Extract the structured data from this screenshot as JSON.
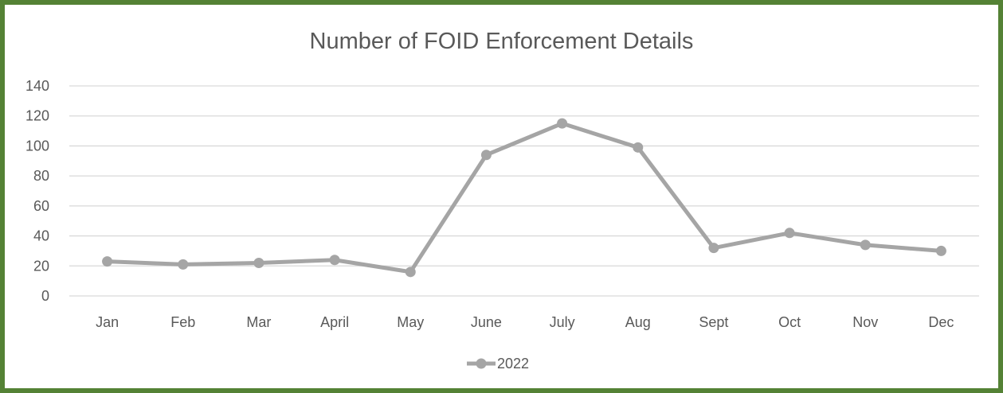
{
  "chart_data": {
    "type": "line",
    "title": "Number of FOID Enforcement Details",
    "xlabel": "",
    "ylabel": "",
    "categories": [
      "Jan",
      "Feb",
      "Mar",
      "April",
      "May",
      "June",
      "July",
      "Aug",
      "Sept",
      "Oct",
      "Nov",
      "Dec"
    ],
    "series": [
      {
        "name": "2022",
        "values": [
          23,
          21,
          22,
          24,
          16,
          94,
          115,
          99,
          32,
          42,
          34,
          30
        ],
        "color": "#a5a5a5"
      }
    ],
    "ylim": [
      0,
      140
    ],
    "yticks": [
      0,
      20,
      40,
      60,
      80,
      100,
      120,
      140
    ],
    "grid": true,
    "legend_position": "bottom"
  },
  "colors": {
    "border": "#548235",
    "gridline": "#d9d9d9",
    "text": "#595959"
  }
}
